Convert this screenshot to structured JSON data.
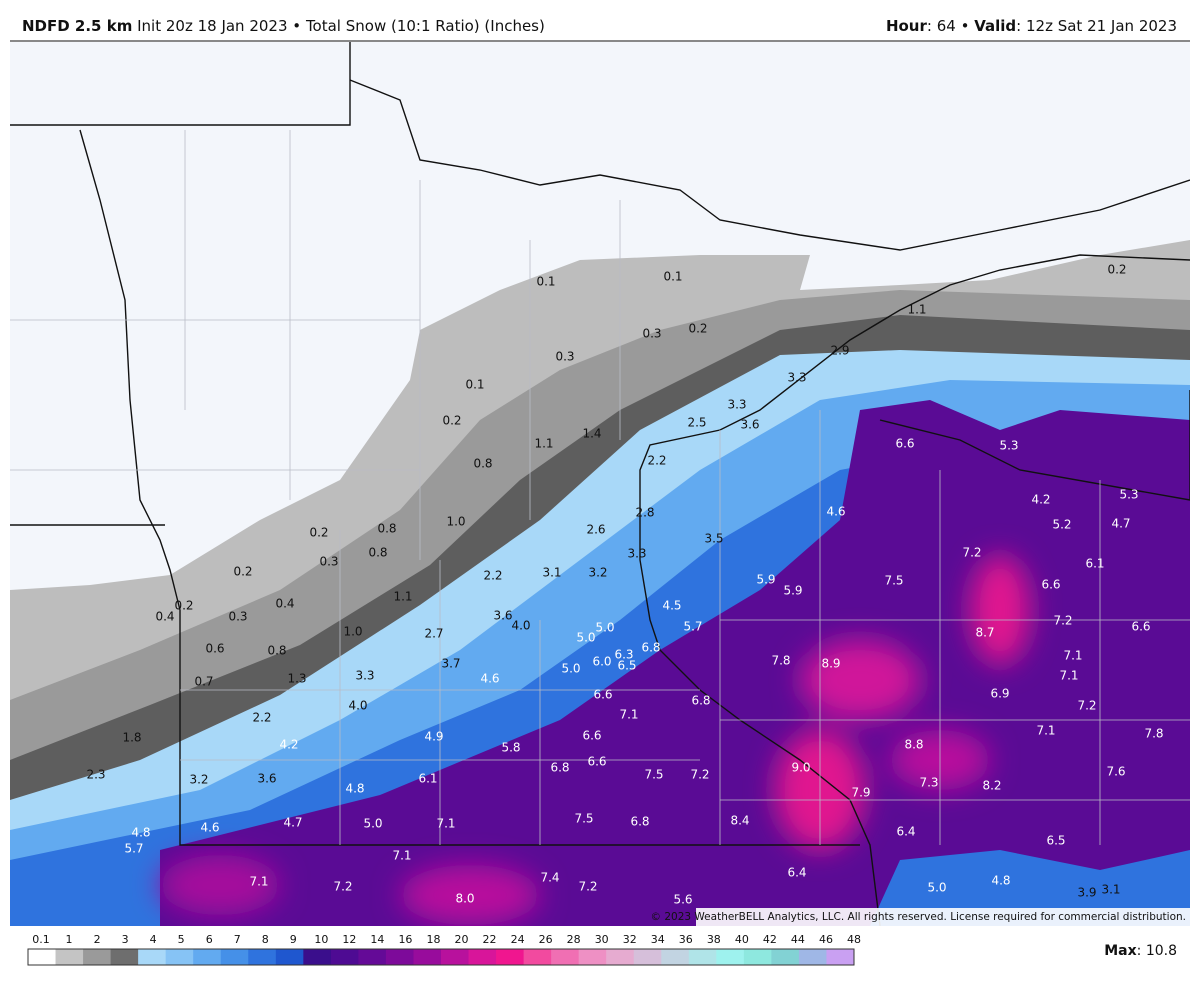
{
  "header": {
    "model": "NDFD 2.5 km",
    "init": "Init 20z 18 Jan 2023",
    "separator": "•",
    "product": "Total Snow (10:1 Ratio) (Inches)",
    "hour_label": "Hour",
    "hour_value": ": 64",
    "valid_label": "Valid",
    "valid_value": ": 12z Sat 21 Jan 2023"
  },
  "map": {
    "labels": [
      "0.1",
      "0.1",
      "0.3",
      "0.2",
      "0.3",
      "0.1",
      "0.2",
      "0.8",
      "1.1",
      "1.4",
      "2.5",
      "3.3",
      "3.6",
      "1.1",
      "2.9",
      "3.3",
      "2.2",
      "1.0",
      "2.8",
      "2.6",
      "3.5",
      "4.6",
      "6.6",
      "5.3",
      "4.2",
      "5.3",
      "5.2",
      "4.7",
      "0.2",
      "0.2",
      "0.8",
      "0.3",
      "0.8",
      "0.2",
      "0.4",
      "0.2",
      "0.4",
      "0.3",
      "1.1",
      "2.2",
      "3.1",
      "3.2",
      "3.3",
      "5.9",
      "5.9",
      "7.5",
      "7.2",
      "6.1",
      "6.6",
      "7.2",
      "6.6",
      "8.7",
      "7.1",
      "7.1",
      "1.0",
      "2.7",
      "3.6",
      "4.0",
      "5.0",
      "5.0",
      "6.3",
      "6.8",
      "4.5",
      "5.7",
      "0.6",
      "0.8",
      "0.7",
      "1.3",
      "3.3",
      "3.7",
      "4.6",
      "5.0",
      "6.0",
      "6.5",
      "7.8",
      "8.9",
      "6.9",
      "7.2",
      "7.1",
      "7.8",
      "4.0",
      "2.2",
      "6.6",
      "6.8",
      "7.1",
      "1.8",
      "4.2",
      "4.9",
      "5.8",
      "6.6",
      "8.8",
      "2.3",
      "3.2",
      "3.6",
      "4.8",
      "6.1",
      "6.8",
      "6.6",
      "7.5",
      "7.2",
      "9.0",
      "7.9",
      "7.3",
      "8.2",
      "7.6",
      "4.8",
      "4.6",
      "4.7",
      "5.0",
      "7.1",
      "7.5",
      "6.8",
      "8.4",
      "6.4",
      "6.5",
      "5.7",
      "7.1",
      "7.1",
      "7.2",
      "7.4",
      "7.2",
      "8.0",
      "6.4",
      "5.6",
      "5.0",
      "4.8",
      "3.9",
      "3.1"
    ],
    "copyright": "© 2023 WeatherBELL Analytics, LLC. All rights reserved. License required for commercial distribution."
  },
  "legend": {
    "ticks": [
      "0.1",
      "1",
      "2",
      "3",
      "4",
      "5",
      "6",
      "7",
      "8",
      "9",
      "10",
      "12",
      "14",
      "16",
      "18",
      "20",
      "22",
      "24",
      "26",
      "28",
      "30",
      "32",
      "34",
      "36",
      "38",
      "40",
      "42",
      "44",
      "46",
      "48"
    ],
    "colors": [
      "#ffffff",
      "#c4c4c4",
      "#9a9a9a",
      "#6e6e6e",
      "#a8d8f8",
      "#86c3f5",
      "#62aaf0",
      "#4590e8",
      "#2f73de",
      "#1f57cf",
      "#3a0e8c",
      "#4e0b93",
      "#640a97",
      "#7d0a9a",
      "#980c9c",
      "#b8119d",
      "#d8159a",
      "#f0168f",
      "#f24a9f",
      "#f06fb3",
      "#ee90c4",
      "#e6abd0",
      "#d6bfda",
      "#c2d4e2",
      "#b0e4e8",
      "#9ef2ee",
      "#8ee8df",
      "#82d2d4",
      "#9fb7e6",
      "#c9a0f2"
    ],
    "max_label": "Max",
    "max_value": ": 10.8"
  }
}
